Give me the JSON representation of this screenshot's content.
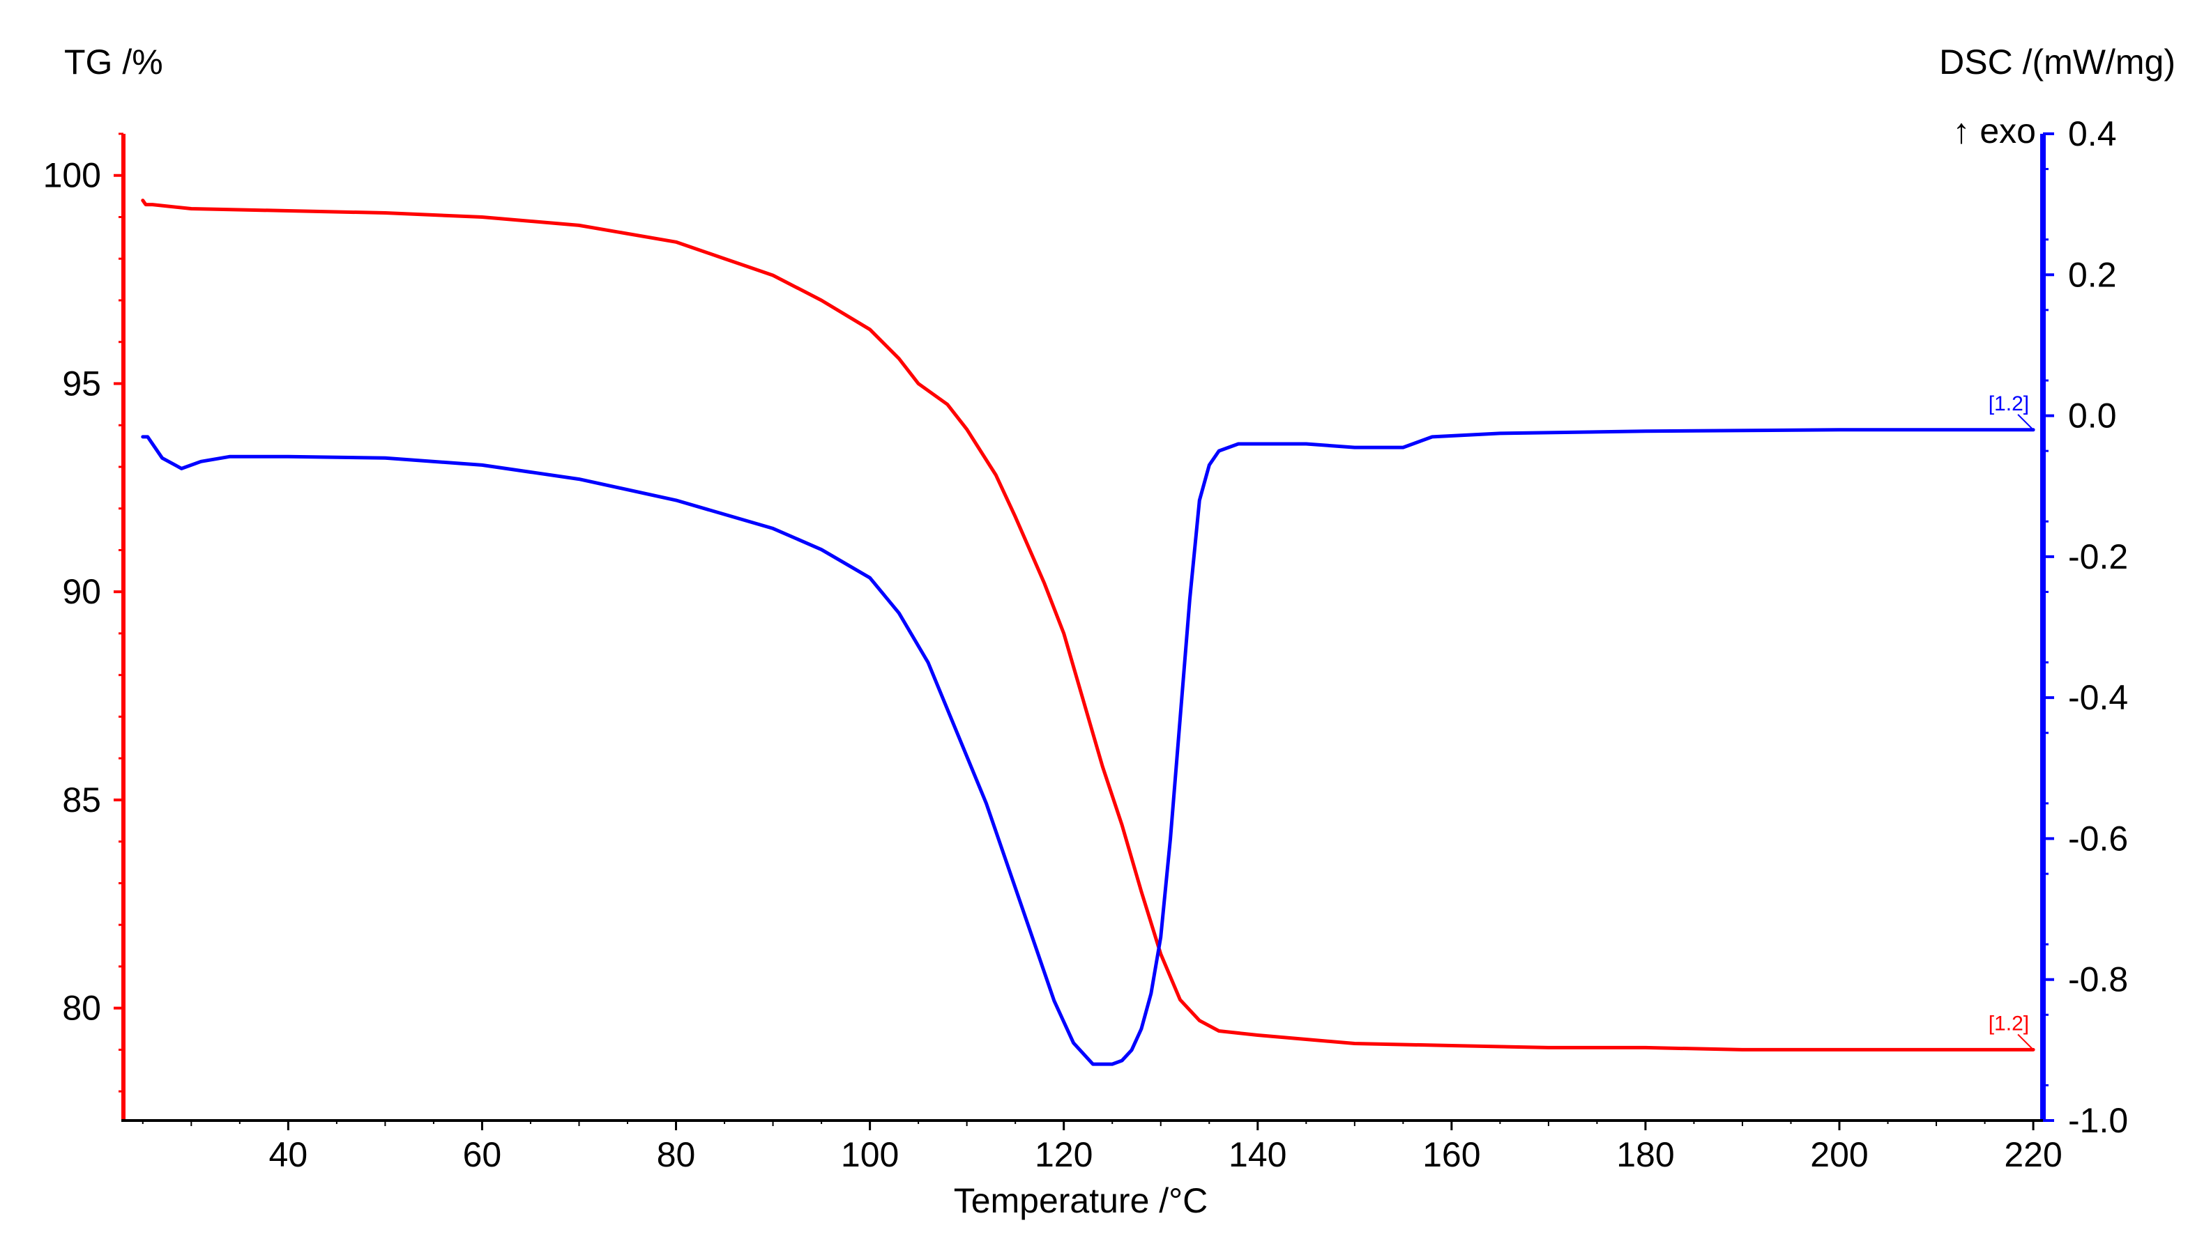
{
  "chart_data": {
    "type": "line",
    "title": "",
    "xlabel": "Temperature /°C",
    "ylabel_left": "TG /%",
    "ylabel_right": "DSC /(mW/mg)",
    "exo_label": "↑ exo",
    "xlim": [
      23,
      221
    ],
    "ylim_left": [
      77.3,
      101
    ],
    "ylim_right": [
      -1.0,
      0.4
    ],
    "x_ticks": [
      40,
      60,
      80,
      100,
      120,
      140,
      160,
      180,
      200,
      220
    ],
    "y_left_ticks": [
      80,
      85,
      90,
      95,
      100
    ],
    "y_right_ticks": [
      0.4,
      0.2,
      0.0,
      -0.2,
      -0.4,
      -0.6,
      -0.8,
      -1.0
    ],
    "y_right_tick_labels": [
      "0.4",
      "0.2",
      "0.0",
      "-0.2",
      "-0.4",
      "-0.6",
      "-0.8",
      "-1.0"
    ],
    "grid": false,
    "colors": {
      "tg": "#ff0000",
      "dsc": "#0000ff"
    },
    "series": [
      {
        "name": "TG",
        "axis": "left",
        "color": "#ff0000",
        "marker": "[1.2]",
        "x": [
          25,
          25.3,
          26,
          30,
          40,
          50,
          60,
          70,
          80,
          85,
          90,
          95,
          100,
          103,
          105,
          108,
          110,
          113,
          115,
          118,
          120,
          122,
          124,
          126,
          128,
          130,
          132,
          134,
          136,
          140,
          150,
          160,
          170,
          180,
          190,
          200,
          210,
          220
        ],
        "y": [
          99.4,
          99.3,
          99.3,
          99.2,
          99.15,
          99.1,
          99.0,
          98.8,
          98.4,
          98.0,
          97.6,
          97.0,
          96.3,
          95.6,
          95.0,
          94.5,
          93.9,
          92.8,
          91.8,
          90.2,
          89.0,
          87.4,
          85.8,
          84.4,
          82.8,
          81.3,
          80.2,
          79.7,
          79.45,
          79.35,
          79.15,
          79.1,
          79.05,
          79.05,
          79.0,
          79.0,
          79.0,
          79.0
        ]
      },
      {
        "name": "DSC",
        "axis": "right",
        "color": "#0000ff",
        "marker": "[1.2]",
        "x": [
          25,
          25.5,
          27,
          29,
          31,
          34,
          40,
          50,
          60,
          70,
          80,
          90,
          95,
          100,
          103,
          106,
          109,
          112,
          115,
          117,
          119,
          121,
          123,
          125,
          126,
          127,
          128,
          129,
          130,
          131,
          132,
          133,
          134,
          135,
          136,
          138,
          140,
          145,
          150,
          155,
          158,
          165,
          180,
          200,
          220
        ],
        "y": [
          -0.03,
          -0.03,
          -0.06,
          -0.075,
          -0.065,
          -0.058,
          -0.058,
          -0.06,
          -0.07,
          -0.09,
          -0.12,
          -0.16,
          -0.19,
          -0.23,
          -0.28,
          -0.35,
          -0.45,
          -0.55,
          -0.67,
          -0.75,
          -0.83,
          -0.89,
          -0.92,
          -0.92,
          -0.915,
          -0.9,
          -0.87,
          -0.82,
          -0.74,
          -0.6,
          -0.43,
          -0.26,
          -0.12,
          -0.07,
          -0.05,
          -0.04,
          -0.04,
          -0.04,
          -0.045,
          -0.045,
          -0.03,
          -0.025,
          -0.022,
          -0.02,
          -0.02
        ]
      }
    ]
  }
}
